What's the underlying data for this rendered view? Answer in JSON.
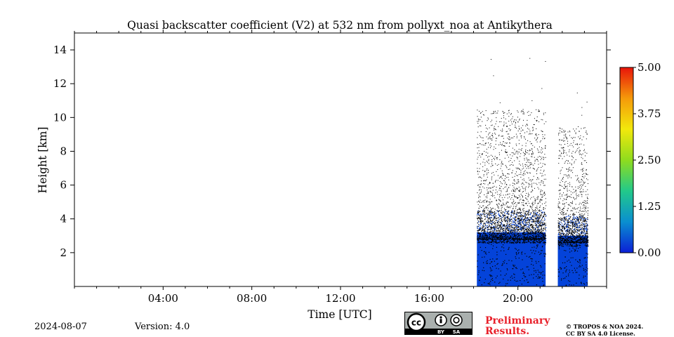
{
  "chart_data": {
    "type": "heatmap",
    "title": "Quasi backscatter coefficient (V2) at 532 nm from pollyxt_noa at Antikythera",
    "xlabel": "Time [UTC]",
    "ylabel": "Height [km]",
    "xlim_hours": [
      0,
      24
    ],
    "ylim_km": [
      0,
      15
    ],
    "x_ticks": [
      {
        "hour": 4,
        "label": "04:00"
      },
      {
        "hour": 8,
        "label": "08:00"
      },
      {
        "hour": 12,
        "label": "12:00"
      },
      {
        "hour": 16,
        "label": "16:00"
      },
      {
        "hour": 20,
        "label": "20:00"
      }
    ],
    "y_ticks": [
      {
        "km": 2,
        "label": "2"
      },
      {
        "km": 4,
        "label": "4"
      },
      {
        "km": 6,
        "label": "6"
      },
      {
        "km": 8,
        "label": "8"
      },
      {
        "km": 10,
        "label": "10"
      },
      {
        "km": 12,
        "label": "12"
      },
      {
        "km": 14,
        "label": "14"
      }
    ],
    "colorbar": {
      "range": [
        0,
        5
      ],
      "ticks": [
        "0.00",
        "1.25",
        "2.50",
        "3.75",
        "5.00"
      ],
      "colors": [
        "#0b1fd6",
        "#0a8fd0",
        "#22c98a",
        "#8fdc1e",
        "#f2e80c",
        "#f59a0a",
        "#e8140a"
      ]
    },
    "measurement_periods": [
      {
        "start_hour": 18.15,
        "end_hour": 21.25,
        "dense_top_km": 3.2,
        "noise_top_km": 10.5,
        "max_speckle_km": 13.8
      },
      {
        "start_hour": 21.8,
        "end_hour": 23.15,
        "dense_top_km": 3.0,
        "noise_top_km": 9.5,
        "max_speckle_km": 11.5
      }
    ],
    "signal_color": "#0443d9"
  },
  "footer": {
    "date": "2024-08-07",
    "version": "Version: 4.0",
    "preliminary_line1": "Preliminary",
    "preliminary_line2": "Results.",
    "copyright_line1": "© TROPOS & NOA 2024.",
    "copyright_line2": "CC BY SA 4.0 License.",
    "license_by": "BY",
    "license_sa": "SA"
  }
}
